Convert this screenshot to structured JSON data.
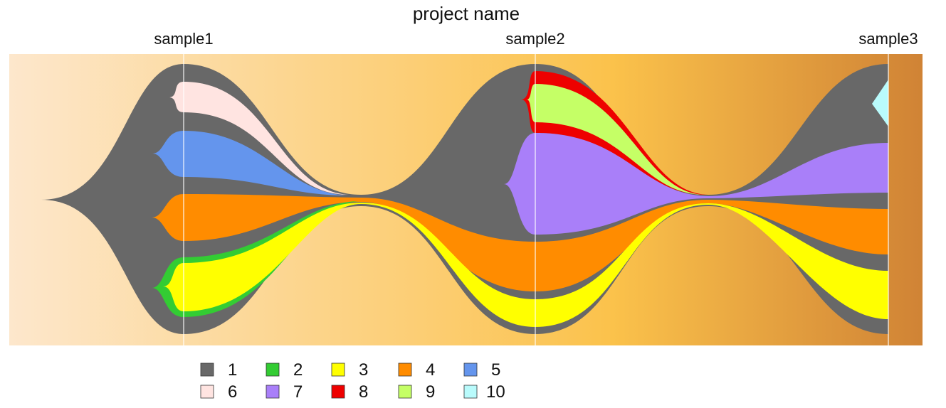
{
  "chart_data": {
    "type": "fishplot",
    "title": "project name",
    "timepoints": [
      {
        "label": "sample1",
        "x": 1
      },
      {
        "label": "sample2",
        "x": 2
      },
      {
        "label": "sample3",
        "x": 3
      }
    ],
    "xlim": [
      0.5,
      3.1
    ],
    "background_gradient": [
      "#fde7cc",
      "#fbc24b",
      "#d08335"
    ],
    "clones": [
      {
        "name": "1",
        "color": "#686868",
        "parent": null,
        "values": [
          100,
          100,
          100
        ]
      },
      {
        "name": "2",
        "color": "#33cc33",
        "parent": "1",
        "values": [
          24,
          0,
          0
        ]
      },
      {
        "name": "3",
        "color": "#ffff00",
        "parent": "2",
        "values": [
          20,
          15,
          20
        ]
      },
      {
        "name": "4",
        "color": "#ff8c00",
        "parent": "1",
        "values": [
          17,
          18,
          17
        ]
      },
      {
        "name": "5",
        "color": "#6495ed",
        "parent": "1",
        "values": [
          17,
          0,
          0
        ]
      },
      {
        "name": "6",
        "color": "#ffe4e1",
        "parent": "1",
        "values": [
          13,
          0,
          0
        ]
      },
      {
        "name": "7",
        "color": "#a97ff9",
        "parent": "1",
        "values": [
          0,
          38,
          19
        ]
      },
      {
        "name": "8",
        "color": "#ee0000",
        "parent": "1",
        "values": [
          0,
          21,
          0
        ]
      },
      {
        "name": "9",
        "color": "#c5ff66",
        "parent": "8",
        "values": [
          0,
          15,
          0
        ]
      },
      {
        "name": "10",
        "color": "#b9fbfc",
        "parent": "1",
        "values": [
          0,
          0,
          15
        ]
      }
    ],
    "legend": {
      "placement": "bottom",
      "entries": [
        {
          "label": "1",
          "color": "#686868"
        },
        {
          "label": "2",
          "color": "#33cc33"
        },
        {
          "label": "3",
          "color": "#ffff00"
        },
        {
          "label": "4",
          "color": "#ff8c00"
        },
        {
          "label": "5",
          "color": "#6495ed"
        },
        {
          "label": "6",
          "color": "#ffe4e1"
        },
        {
          "label": "7",
          "color": "#a97ff9"
        },
        {
          "label": "8",
          "color": "#ee0000"
        },
        {
          "label": "9",
          "color": "#c5ff66"
        },
        {
          "label": "10",
          "color": "#b9fbfc"
        }
      ]
    }
  }
}
